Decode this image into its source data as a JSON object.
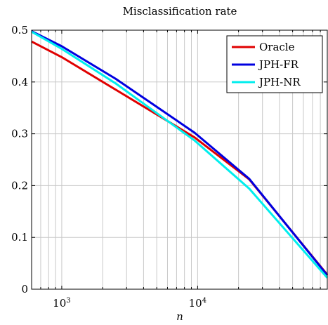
{
  "chart_data": {
    "type": "line",
    "title": "Misclassification rate",
    "xlabel": "n",
    "ylabel": "",
    "x_scale": "log",
    "xlim": [
      600,
      90000
    ],
    "ylim": [
      0,
      0.5
    ],
    "x_ticks": [
      {
        "value": 1000,
        "base": "10",
        "exp": "3"
      },
      {
        "value": 10000,
        "base": "10",
        "exp": "4"
      }
    ],
    "y_ticks": [
      {
        "value": 0,
        "label": "0"
      },
      {
        "value": 0.1,
        "label": "0.1"
      },
      {
        "value": 0.2,
        "label": "0.2"
      },
      {
        "value": 0.3,
        "label": "0.3"
      },
      {
        "value": 0.4,
        "label": "0.4"
      },
      {
        "value": 0.5,
        "label": "0.5"
      }
    ],
    "grid": true,
    "legend_position": "top-right",
    "series": [
      {
        "name": "Oracle",
        "color": "#e00000",
        "points": [
          [
            600,
            0.478
          ],
          [
            1000,
            0.448
          ],
          [
            2500,
            0.385
          ],
          [
            9500,
            0.293
          ],
          [
            24000,
            0.212
          ],
          [
            90000,
            0.028
          ]
        ]
      },
      {
        "name": "JPH-FR",
        "color": "#0000e0",
        "points": [
          [
            600,
            0.498
          ],
          [
            1000,
            0.469
          ],
          [
            2500,
            0.406
          ],
          [
            9500,
            0.302
          ],
          [
            24000,
            0.213
          ],
          [
            90000,
            0.027
          ]
        ]
      },
      {
        "name": "JPH-NR",
        "color": "#00eeee",
        "points": [
          [
            600,
            0.497
          ],
          [
            1000,
            0.464
          ],
          [
            2500,
            0.397
          ],
          [
            9500,
            0.287
          ],
          [
            24000,
            0.194
          ],
          [
            90000,
            0.022
          ]
        ]
      }
    ]
  }
}
